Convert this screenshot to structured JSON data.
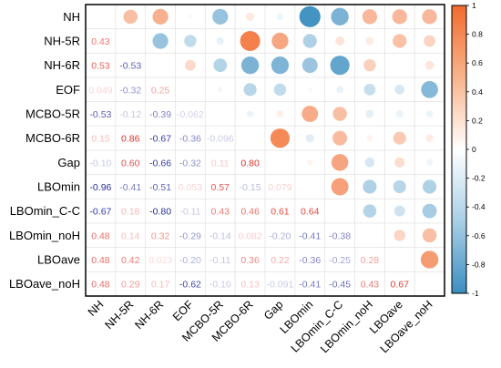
{
  "chart_data": {
    "type": "heatmap",
    "subtype": "correlation-matrix-mixed",
    "description_visible": "upper triangle circles (size and color = correlation), lower triangle printed coefficients",
    "variables": [
      "NH",
      "NH-5R",
      "NH-6R",
      "EOF",
      "MCBO-5R",
      "MCBO-6R",
      "Gap",
      "LBOmin",
      "LBOmin_C-C",
      "LBOmin_noH",
      "LBOave",
      "LBOave_noH"
    ],
    "matrix": [
      [
        1.0,
        0.43,
        0.53,
        0.049,
        -0.53,
        0.15,
        -0.1,
        -0.96,
        -0.67,
        0.48,
        0.48,
        0.48
      ],
      [
        0.43,
        1.0,
        -0.53,
        -0.32,
        -0.12,
        0.86,
        0.6,
        -0.41,
        0.18,
        0.14,
        0.42,
        0.29
      ],
      [
        0.53,
        -0.53,
        1.0,
        0.25,
        -0.39,
        -0.67,
        -0.66,
        -0.51,
        -0.8,
        0.32,
        0.023,
        0.17
      ],
      [
        0.049,
        -0.32,
        0.25,
        1.0,
        -0.062,
        -0.36,
        -0.32,
        0.053,
        -0.11,
        -0.29,
        -0.2,
        -0.62
      ],
      [
        -0.53,
        -0.12,
        -0.39,
        -0.062,
        1.0,
        -0.096,
        0.11,
        0.57,
        0.43,
        -0.14,
        -0.11,
        -0.1
      ],
      [
        0.15,
        0.86,
        -0.67,
        -0.36,
        -0.096,
        1.0,
        0.8,
        -0.15,
        0.46,
        0.082,
        0.36,
        0.13
      ],
      [
        -0.1,
        0.6,
        -0.66,
        -0.32,
        0.11,
        0.8,
        1.0,
        0.079,
        0.61,
        -0.2,
        0.22,
        -0.091
      ],
      [
        -0.96,
        -0.41,
        -0.51,
        0.053,
        0.57,
        -0.15,
        0.079,
        1.0,
        0.64,
        -0.41,
        -0.36,
        -0.41
      ],
      [
        -0.67,
        0.18,
        -0.8,
        -0.11,
        0.43,
        0.46,
        0.61,
        0.64,
        1.0,
        -0.38,
        -0.25,
        -0.45
      ],
      [
        0.48,
        0.14,
        0.32,
        -0.29,
        -0.14,
        0.082,
        -0.2,
        -0.41,
        -0.38,
        1.0,
        0.28,
        0.43
      ],
      [
        0.48,
        0.42,
        0.023,
        -0.2,
        -0.11,
        0.36,
        0.22,
        -0.36,
        -0.25,
        0.28,
        1.0,
        0.67
      ],
      [
        0.48,
        0.29,
        0.17,
        -0.62,
        -0.1,
        0.13,
        -0.091,
        -0.41,
        -0.45,
        0.43,
        0.67,
        1.0
      ]
    ],
    "lower_labels": [
      [],
      [
        "0.43"
      ],
      [
        "0.53",
        "-0.53"
      ],
      [
        "0.049",
        "-0.32",
        "0.25"
      ],
      [
        "-0.53",
        "-0.12",
        "-0.39",
        "-0.062"
      ],
      [
        "0.15",
        "0.86",
        "-0.67",
        "-0.36",
        "-0.096"
      ],
      [
        "-0.10",
        "0.60",
        "-0.66",
        "-0.32",
        "0.11",
        "0.80"
      ],
      [
        "-0.96",
        "-0.41",
        "-0.51",
        "0.053",
        "0.57",
        "-0.15",
        "0.079"
      ],
      [
        "-0.67",
        "0.18",
        "-0.80",
        "-0.11",
        "0.43",
        "0.46",
        "0.61",
        "0.64"
      ],
      [
        "0.48",
        "0.14",
        "0.32",
        "-0.29",
        "-0.14",
        "0.082",
        "-0.20",
        "-0.41",
        "-0.38"
      ],
      [
        "0.48",
        "0.42",
        "0.023",
        "-0.20",
        "-0.11",
        "0.36",
        "0.22",
        "-0.36",
        "-0.25",
        "0.28"
      ],
      [
        "0.48",
        "0.29",
        "0.17",
        "-0.62",
        "-0.10",
        "0.13",
        "-0.091",
        "-0.41",
        "-0.45",
        "0.43",
        "0.67"
      ]
    ],
    "colorbar": {
      "range": [
        -1,
        1
      ],
      "ticks": [
        "1",
        "0.8",
        "0.6",
        "0.4",
        "0.2",
        "0",
        "-0.2",
        "-0.4",
        "-0.6",
        "-0.8",
        "-1"
      ],
      "positive_color": "#f26b2e",
      "negative_color": "#3b8ec0",
      "zero_color": "#ffffff"
    },
    "lower_text_positive_color": "#e0342b",
    "lower_text_negative_color": "#2a2f9e",
    "legend_position": "right",
    "grid": true
  }
}
